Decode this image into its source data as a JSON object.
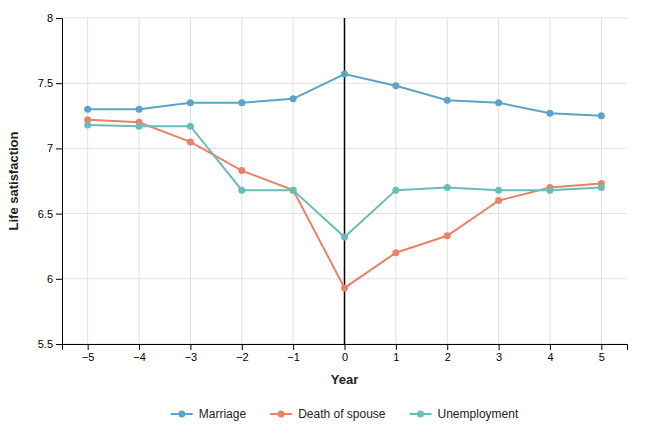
{
  "chart_data": {
    "type": "line",
    "x_label": "Year",
    "y_label": "Life satisfaction",
    "x": [
      -5,
      -4,
      -3,
      -2,
      -1,
      0,
      1,
      2,
      3,
      4,
      5
    ],
    "series": [
      {
        "name": "Marriage",
        "color": "#5ba3c9",
        "values": [
          7.3,
          7.3,
          7.35,
          7.35,
          7.38,
          7.57,
          7.48,
          7.37,
          7.35,
          7.27,
          7.25
        ]
      },
      {
        "name": "Death of spouse",
        "color": "#e8836a",
        "values": [
          7.22,
          7.2,
          7.05,
          6.83,
          6.68,
          5.93,
          6.2,
          6.33,
          6.6,
          6.7,
          6.73
        ]
      },
      {
        "name": "Unemployment",
        "color": "#6bbcb8",
        "values": [
          7.18,
          7.17,
          7.17,
          6.68,
          6.68,
          6.32,
          6.68,
          6.7,
          6.68,
          6.68,
          6.7
        ]
      }
    ],
    "xlim": [
      -5.5,
      5.5
    ],
    "xticks": [
      {
        "value": -5,
        "label": "−5"
      },
      {
        "value": -4,
        "label": "−4"
      },
      {
        "value": -3,
        "label": "−3"
      },
      {
        "value": -2,
        "label": "−2"
      },
      {
        "value": -1,
        "label": "−1"
      },
      0,
      1,
      2,
      3,
      4,
      5
    ],
    "ylim": [
      5.5,
      8.0
    ],
    "yticks": [
      5.5,
      6,
      6.5,
      7,
      7.5,
      8
    ],
    "vlines": [
      0
    ],
    "marker": "circle",
    "grid": true,
    "legend": "bottom"
  }
}
